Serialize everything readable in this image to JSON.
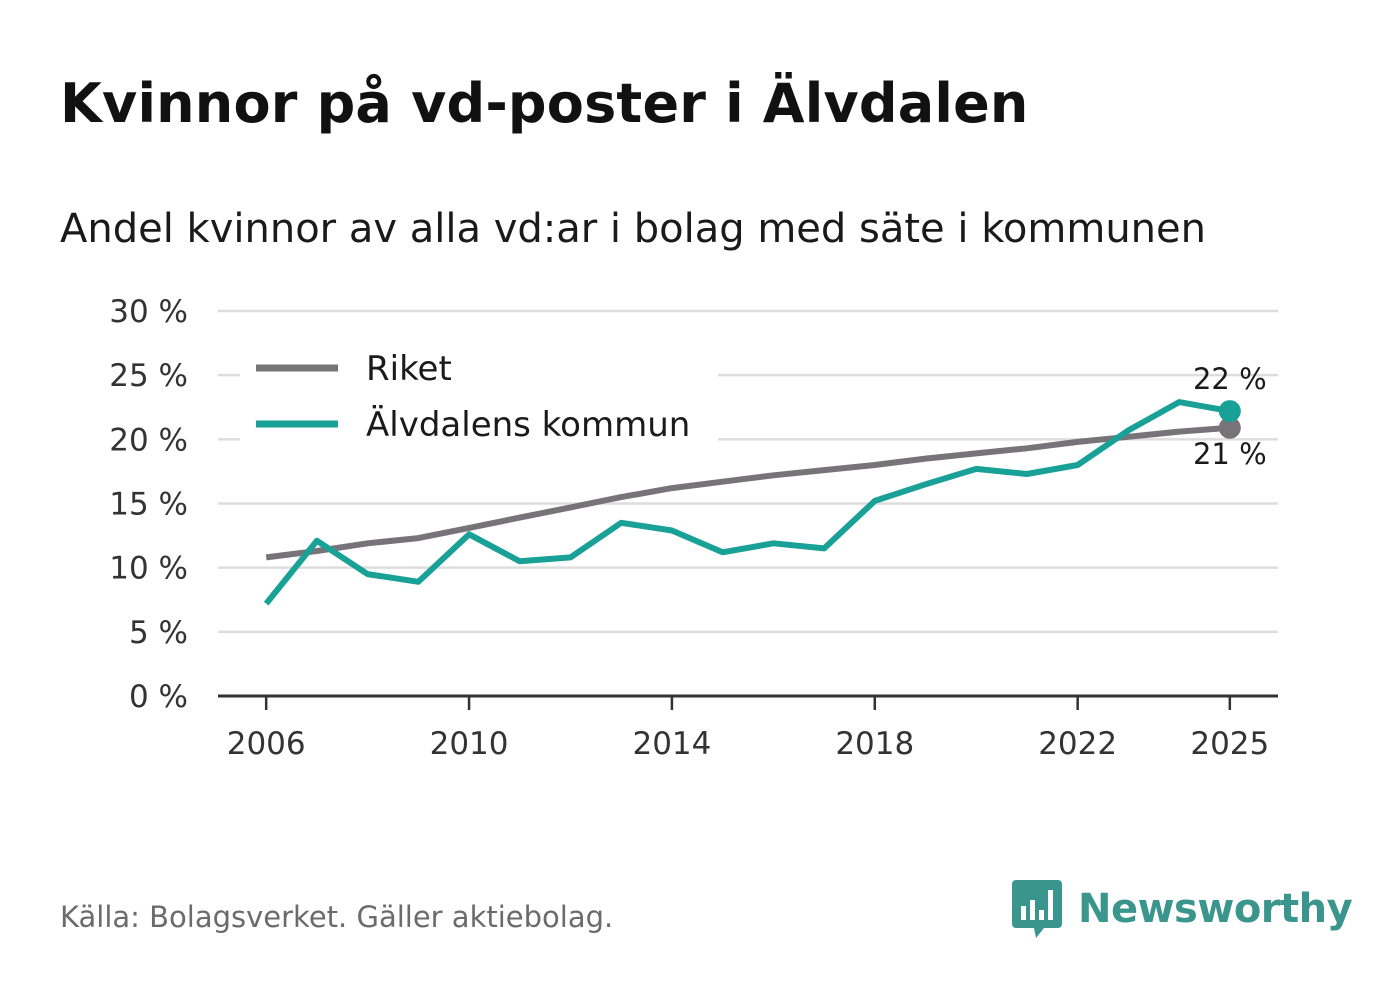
{
  "title": "Kvinnor på vd-poster i Älvdalen",
  "subtitle": "Andel kvinnor av alla vd:ar i bolag med säte i kommunen",
  "source": "Källa: Bolagsverket. Gäller aktiebolag.",
  "brand": "Newsworthy",
  "colors": {
    "riket": "#777479",
    "kommun": "#1aa197",
    "grid": "#dddddd",
    "axis": "#333333"
  },
  "chart_data": {
    "type": "line",
    "title": "Kvinnor på vd-poster i Älvdalen",
    "subtitle": "Andel kvinnor av alla vd:ar i bolag med säte i kommunen",
    "xlabel": "",
    "ylabel": "",
    "x": [
      2006,
      2007,
      2008,
      2009,
      2010,
      2011,
      2012,
      2013,
      2014,
      2015,
      2016,
      2017,
      2018,
      2019,
      2020,
      2021,
      2022,
      2023,
      2024,
      2025
    ],
    "xticks": [
      2006,
      2010,
      2014,
      2018,
      2022,
      2025
    ],
    "xtick_labels": [
      "2006",
      "2010",
      "2014",
      "2018",
      "2022",
      "2025"
    ],
    "ylim": [
      0,
      30
    ],
    "yticks": [
      0,
      5,
      10,
      15,
      20,
      25,
      30
    ],
    "ytick_labels": [
      "0 %",
      "5 %",
      "10 %",
      "15 %",
      "20 %",
      "25 %",
      "30 %"
    ],
    "grid": true,
    "legend_position": "top-left",
    "series": [
      {
        "name": "Riket",
        "key": "riket",
        "values": [
          10.8,
          11.3,
          11.9,
          12.3,
          13.1,
          13.9,
          14.7,
          15.5,
          16.2,
          16.7,
          17.2,
          17.6,
          18.0,
          18.5,
          18.9,
          19.3,
          19.8,
          20.2,
          20.6,
          20.9
        ],
        "end_label": "21 %"
      },
      {
        "name": "Älvdalens kommun",
        "key": "kommun",
        "values": [
          7.2,
          12.1,
          9.5,
          8.9,
          12.6,
          10.5,
          10.8,
          13.5,
          12.9,
          11.2,
          11.9,
          11.5,
          15.2,
          16.5,
          17.7,
          17.3,
          18.0,
          20.7,
          22.9,
          22.2
        ],
        "end_label": "22 %"
      }
    ]
  }
}
